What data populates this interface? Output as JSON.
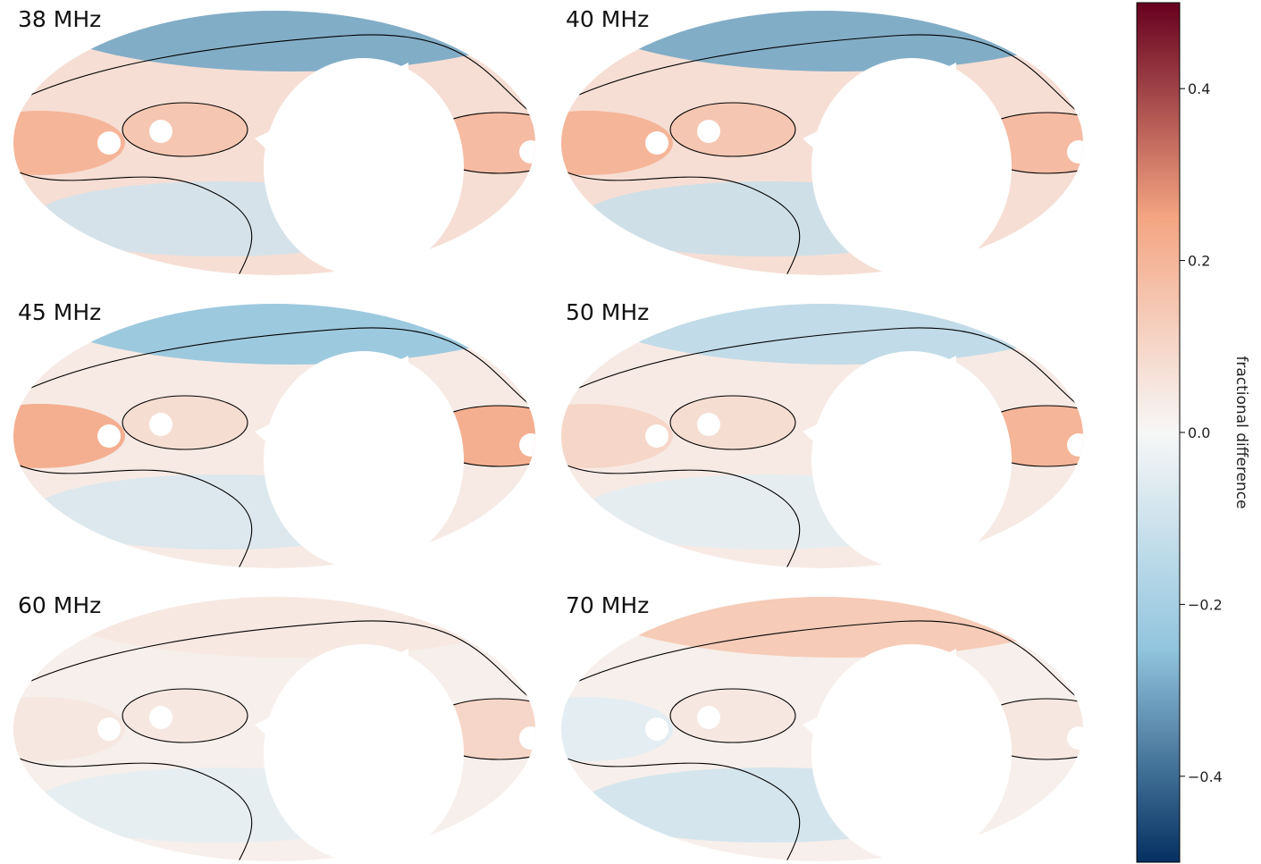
{
  "chart_data": {
    "type": "heatmap",
    "projection": "mollweide",
    "layout": "3 rows x 2 columns",
    "colormap": "RdBu_r",
    "colorbar": {
      "label": "fractional difference",
      "range": [
        -0.5,
        0.5
      ],
      "ticks": [
        0.4,
        0.2,
        0.0,
        -0.2,
        -0.4
      ],
      "tick_labels": [
        "0.4",
        "0.2",
        "0.0",
        "−0.2",
        "−0.4"
      ],
      "colors": {
        "max": "#67001f",
        "pos": "#f4a582",
        "zero": "#f7f7f7",
        "neg": "#92c5de",
        "min": "#053061"
      }
    },
    "panels": [
      {
        "label": "38 MHz",
        "north_cap": -0.3,
        "band_near_center": 0.15,
        "band_left_edge": 0.2,
        "band_right_edge": 0.18,
        "south_region": -0.1,
        "masked_region": "large white ellipse (unobserved sky)"
      },
      {
        "label": "40 MHz",
        "north_cap": -0.3,
        "band_near_center": 0.15,
        "band_left_edge": 0.2,
        "band_right_edge": 0.18,
        "south_region": -0.12,
        "masked_region": "large white ellipse (unobserved sky)"
      },
      {
        "label": "45 MHz",
        "north_cap": -0.25,
        "band_near_center": 0.08,
        "band_left_edge": 0.22,
        "band_right_edge": 0.22,
        "south_region": -0.08,
        "masked_region": "large white ellipse (unobserved sky)"
      },
      {
        "label": "50 MHz",
        "north_cap": -0.15,
        "band_near_center": 0.08,
        "band_left_edge": 0.1,
        "band_right_edge": 0.2,
        "south_region": -0.05,
        "masked_region": "large white ellipse (unobserved sky)"
      },
      {
        "label": "60 MHz",
        "north_cap": 0.05,
        "band_near_center": 0.05,
        "band_left_edge": 0.05,
        "band_right_edge": 0.1,
        "south_region": -0.05,
        "masked_region": "large white ellipse (unobserved sky)"
      },
      {
        "label": "70 MHz",
        "north_cap": 0.15,
        "band_near_center": 0.05,
        "band_left_edge": -0.05,
        "band_right_edge": 0.05,
        "south_region": -0.1,
        "masked_region": "large white ellipse (unobserved sky)"
      }
    ],
    "contours": "black contour lines at 0 and ±0.1",
    "grid": false
  }
}
